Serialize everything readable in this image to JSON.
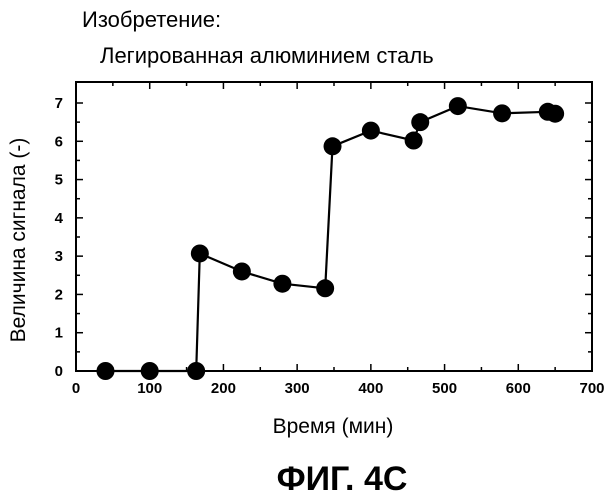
{
  "chart_data": {
    "type": "line",
    "title": "Изобретение:",
    "subtitle": "Легированная алюминием сталь",
    "xlabel": "Время (мин)",
    "ylabel": "Величина сигнала (-)",
    "xlim": [
      0,
      700
    ],
    "ylim": [
      0,
      7.4
    ],
    "xticks": [
      0,
      100,
      200,
      300,
      400,
      500,
      600,
      700
    ],
    "yticks": [
      0,
      1,
      2,
      3,
      4,
      5,
      6,
      7
    ],
    "grid": false,
    "series": [
      {
        "x": [
          40,
          100,
          163,
          168,
          225,
          280,
          338,
          348,
          400,
          458,
          467,
          518,
          578,
          640,
          650
        ],
        "y": [
          0,
          0,
          0,
          3.07,
          2.6,
          2.28,
          2.16,
          5.87,
          6.28,
          6.02,
          6.5,
          6.92,
          6.73,
          6.77,
          6.72
        ]
      }
    ],
    "caption": "ФИГ. 4C"
  }
}
